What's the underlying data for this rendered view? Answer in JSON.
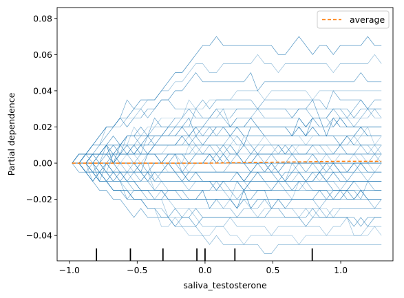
{
  "chart_data": {
    "type": "line",
    "title": "",
    "xlabel": "saliva_testosterone",
    "ylabel": "Partial dependence",
    "xlim": [
      -1.09,
      1.385
    ],
    "ylim": [
      -0.054,
      0.086
    ],
    "x_ticks": [
      -1.0,
      -0.5,
      0.0,
      0.5,
      1.0
    ],
    "x_tick_labels": [
      "−1.0",
      "−0.5",
      "0.0",
      "0.5",
      "1.0"
    ],
    "y_ticks": [
      -0.04,
      -0.02,
      0.0,
      0.02,
      0.04,
      0.06,
      0.08
    ],
    "y_tick_labels": [
      "−0.04",
      "−0.02",
      "0.00",
      "0.02",
      "0.04",
      "0.06",
      "0.08"
    ],
    "grid": false,
    "legend": {
      "position": "top-right",
      "entries": [
        "average"
      ]
    },
    "ice_grid_x": [
      -0.98,
      1.3
    ],
    "ice_curve_end_values": [
      -0.045,
      -0.04,
      -0.035,
      -0.03,
      -0.03,
      -0.025,
      -0.025,
      -0.02,
      -0.02,
      -0.02,
      -0.015,
      -0.015,
      -0.015,
      -0.01,
      -0.01,
      -0.01,
      -0.01,
      -0.005,
      -0.005,
      -0.005,
      -0.005,
      0.0,
      0.0,
      0.0,
      0.0,
      0.0,
      0.005,
      0.005,
      0.005,
      0.005,
      0.01,
      0.01,
      0.01,
      0.01,
      0.015,
      0.015,
      0.015,
      0.02,
      0.02,
      0.02,
      0.025,
      0.025,
      0.03,
      0.03,
      0.035,
      0.04,
      0.045,
      0.055,
      0.065
    ],
    "series": [
      {
        "name": "average",
        "x": [
          -0.98,
          -0.5,
          0.0,
          0.5,
          1.0,
          1.3
        ],
        "y": [
          0.0,
          0.0,
          0.0,
          0.0005,
          0.001,
          0.001
        ],
        "color": "#ff7f0e"
      }
    ],
    "rug_x": [
      -0.8,
      -0.55,
      -0.31,
      -0.06,
      0.0,
      0.22,
      0.79
    ],
    "colors": {
      "ice": "#1f77b4",
      "average": "#ff7f0e",
      "rug": "#000000"
    }
  }
}
